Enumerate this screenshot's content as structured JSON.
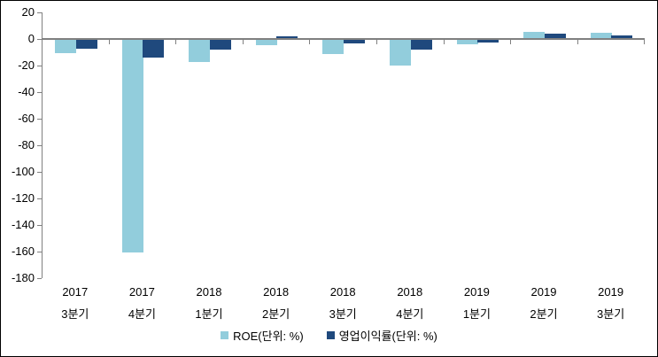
{
  "chart_data": {
    "type": "bar",
    "title": "",
    "xlabel": "",
    "ylabel": "",
    "grid": false,
    "legend_position": "bottom",
    "axis_color": "#808080",
    "background_color": "#ffffff",
    "categories": [
      {
        "year": "2017",
        "quarter": "3분기"
      },
      {
        "year": "2017",
        "quarter": "4분기"
      },
      {
        "year": "2018",
        "quarter": "1분기"
      },
      {
        "year": "2018",
        "quarter": "2분기"
      },
      {
        "year": "2018",
        "quarter": "3분기"
      },
      {
        "year": "2018",
        "quarter": "4분기"
      },
      {
        "year": "2019",
        "quarter": "1분기"
      },
      {
        "year": "2019",
        "quarter": "2분기"
      },
      {
        "year": "2019",
        "quarter": "3분기"
      }
    ],
    "series": [
      {
        "name": "ROE(단위: %)",
        "color": "#92CDDC",
        "values": [
          -10,
          -160,
          -16.5,
          -4,
          -10.5,
          -19.5,
          -3.5,
          4.5,
          4
        ]
      },
      {
        "name": "영업이익률(단위: %)",
        "color": "#1F497D",
        "values": [
          -6.5,
          -13,
          -7,
          1.5,
          -2.5,
          -7,
          -2,
          3,
          2
        ]
      }
    ],
    "y_axis": {
      "min": -180,
      "max": 20,
      "step": 20,
      "ticks": [
        20,
        0,
        -20,
        -40,
        -60,
        -80,
        -100,
        -120,
        -140,
        -160,
        -180
      ]
    }
  }
}
